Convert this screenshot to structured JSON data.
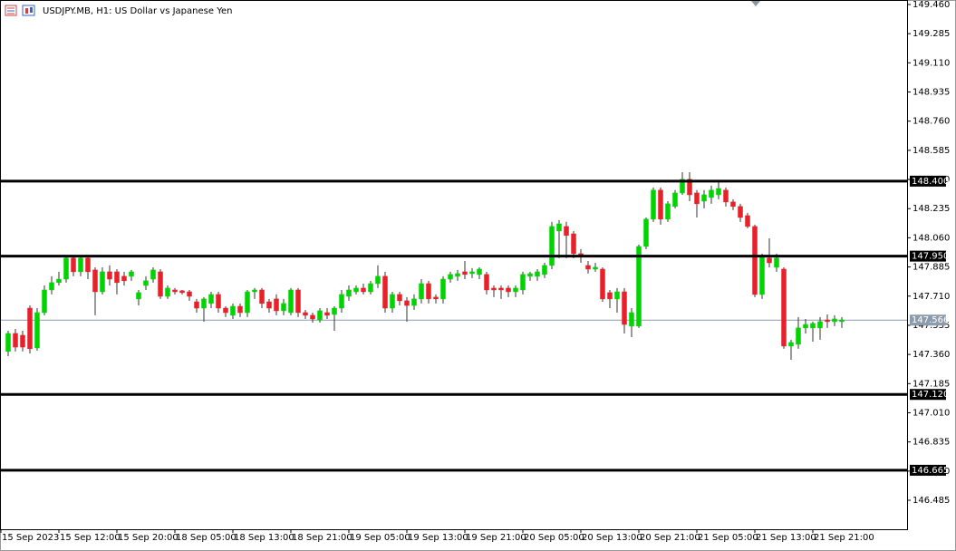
{
  "chart_data": {
    "type": "candlestick",
    "title": "USDJPY.MB, H1:  US Dollar vs Japanese Yen",
    "ylim": [
      146.311,
      149.487
    ],
    "yticks": [
      {
        "value": 149.46,
        "label": "149.460"
      },
      149.285,
      {
        "value": 149.11,
        "label": "149.110"
      },
      148.935,
      {
        "value": 148.76,
        "label": "148.760"
      },
      148.585,
      {
        "value": 148.41,
        "label": "148.410"
      },
      148.235,
      {
        "value": 148.06,
        "label": "148.060"
      },
      147.885,
      {
        "value": 147.71,
        "label": "147.710"
      },
      147.535,
      {
        "value": 147.36,
        "label": "147.360"
      },
      147.185,
      {
        "value": 147.01,
        "label": "147.010"
      },
      146.835,
      {
        "value": 146.66,
        "label": "146.660"
      },
      146.485
    ],
    "xtick_labels": [
      "15 Sep 2023",
      "15 Sep 12:00",
      "15 Sep 20:00",
      "18 Sep 05:00",
      "18 Sep 13:00",
      "18 Sep 21:00",
      "19 Sep 05:00",
      "19 Sep 13:00",
      "19 Sep 21:00",
      "20 Sep 05:00",
      "20 Sep 13:00",
      "20 Sep 21:00",
      "21 Sep 05:00",
      "21 Sep 13:00",
      "21 Sep 21:00"
    ],
    "up_color": "#00d400",
    "down_color": "#e8202a",
    "open": [
      147.378,
      147.486,
      147.475,
      147.638,
      147.399,
      147.611,
      147.747,
      147.791,
      147.812,
      147.938,
      147.856,
      147.938,
      147.867,
      147.736,
      147.856,
      147.856,
      147.829,
      147.829,
      147.693,
      147.774,
      147.812,
      147.856,
      147.709,
      147.747,
      147.742,
      147.736,
      147.676,
      147.638,
      147.666,
      147.72,
      147.638,
      147.595,
      147.649,
      147.611,
      147.736,
      147.747,
      147.676,
      147.693,
      147.622,
      147.611,
      147.747,
      147.611,
      147.595,
      147.567,
      147.611,
      147.6,
      147.638,
      147.709,
      147.736,
      147.758,
      147.736,
      147.785,
      147.829,
      147.638,
      147.72,
      147.682,
      147.654,
      147.693,
      147.785,
      147.704,
      147.693,
      147.812,
      147.829,
      147.856,
      147.845,
      147.84,
      147.84,
      147.758,
      147.758,
      147.758,
      147.736,
      147.747,
      147.829,
      147.829,
      147.84,
      147.894,
      148.101,
      148.128,
      148.084,
      147.965,
      147.894,
      147.872,
      147.872,
      147.731,
      147.693,
      147.736,
      147.53,
      147.53,
      148.008,
      148.172,
      148.346,
      148.172,
      148.248,
      148.329,
      148.411,
      148.329,
      148.28,
      148.302,
      148.318,
      148.346,
      148.275,
      148.248,
      148.193,
      148.128,
      147.72,
      147.938,
      147.883,
      147.872,
      147.41,
      147.421,
      147.519,
      147.519,
      147.519,
      147.567,
      147.557,
      147.557
    ],
    "high": [
      147.502,
      147.513,
      147.502,
      147.654,
      147.638,
      147.774,
      147.829,
      147.856,
      147.948,
      147.948,
      147.948,
      147.948,
      147.883,
      147.883,
      147.894,
      147.872,
      147.856,
      147.867,
      147.747,
      147.829,
      147.883,
      147.872,
      147.774,
      147.758,
      147.747,
      147.747,
      147.693,
      147.704,
      147.736,
      147.736,
      147.649,
      147.666,
      147.666,
      147.747,
      147.758,
      147.758,
      147.693,
      147.72,
      147.693,
      147.758,
      147.758,
      147.627,
      147.611,
      147.638,
      147.638,
      147.649,
      147.747,
      147.774,
      147.774,
      147.785,
      147.802,
      147.894,
      147.856,
      147.736,
      147.736,
      147.704,
      147.72,
      147.812,
      147.802,
      147.72,
      147.829,
      147.856,
      147.867,
      147.921,
      147.878,
      147.883,
      147.856,
      147.774,
      147.774,
      147.774,
      147.774,
      147.856,
      147.856,
      147.872,
      147.91,
      148.155,
      148.166,
      148.155,
      148.101,
      147.992,
      147.921,
      147.91,
      147.883,
      147.747,
      147.758,
      147.758,
      147.638,
      148.019,
      148.182,
      148.362,
      148.362,
      148.28,
      148.346,
      148.454,
      148.454,
      148.346,
      148.346,
      148.373,
      148.4,
      148.362,
      148.291,
      148.264,
      148.21,
      148.139,
      147.965,
      148.057,
      147.965,
      147.883,
      147.448,
      147.584,
      147.573,
      147.557,
      147.584,
      147.6,
      147.595,
      147.584
    ],
    "low": [
      147.35,
      147.378,
      147.378,
      147.366,
      147.383,
      147.595,
      147.72,
      147.774,
      147.791,
      147.829,
      147.829,
      147.812,
      147.595,
      147.72,
      147.774,
      147.72,
      147.774,
      147.802,
      147.654,
      147.747,
      147.791,
      147.693,
      147.693,
      147.72,
      147.72,
      147.682,
      147.611,
      147.557,
      147.638,
      147.611,
      147.584,
      147.573,
      147.584,
      147.584,
      147.693,
      147.638,
      147.611,
      147.595,
      147.595,
      147.595,
      147.584,
      147.573,
      147.551,
      147.551,
      147.573,
      147.502,
      147.611,
      147.682,
      147.72,
      147.72,
      147.72,
      147.758,
      147.611,
      147.611,
      147.654,
      147.557,
      147.627,
      147.666,
      147.666,
      147.666,
      147.666,
      147.791,
      147.802,
      147.812,
      147.818,
      147.812,
      147.72,
      147.704,
      147.693,
      147.704,
      147.704,
      147.72,
      147.802,
      147.802,
      147.818,
      147.872,
      147.938,
      147.938,
      147.938,
      147.91,
      147.845,
      147.856,
      147.676,
      147.638,
      147.611,
      147.486,
      147.464,
      147.519,
      147.992,
      148.155,
      148.139,
      148.155,
      148.237,
      148.318,
      148.28,
      148.182,
      148.237,
      148.264,
      148.291,
      148.248,
      148.226,
      148.155,
      148.117,
      147.704,
      147.693,
      147.883,
      147.856,
      147.394,
      147.328,
      147.394,
      147.486,
      147.437,
      147.448,
      147.519,
      147.53,
      147.519
    ],
    "close": [
      147.486,
      147.404,
      147.404,
      147.394,
      147.611,
      147.747,
      147.791,
      147.812,
      147.938,
      147.856,
      147.938,
      147.856,
      147.736,
      147.856,
      147.812,
      147.791,
      147.802,
      147.856,
      147.731,
      147.802,
      147.867,
      147.709,
      147.758,
      147.736,
      147.731,
      147.709,
      147.638,
      147.693,
      147.72,
      147.638,
      147.611,
      147.649,
      147.611,
      147.736,
      147.747,
      147.666,
      147.638,
      147.622,
      147.666,
      147.747,
      147.611,
      147.595,
      147.573,
      147.622,
      147.595,
      147.638,
      147.72,
      147.747,
      147.758,
      147.736,
      147.785,
      147.829,
      147.638,
      147.72,
      147.682,
      147.654,
      147.693,
      147.785,
      147.693,
      147.693,
      147.812,
      147.84,
      147.845,
      147.84,
      147.856,
      147.872,
      147.747,
      147.747,
      147.747,
      147.736,
      147.758,
      147.84,
      147.845,
      147.856,
      147.894,
      148.128,
      148.144,
      148.074,
      147.965,
      147.948,
      147.872,
      147.883,
      147.693,
      147.693,
      147.736,
      147.54,
      147.611,
      148.008,
      148.172,
      148.346,
      148.172,
      148.264,
      148.329,
      148.411,
      148.318,
      148.264,
      148.318,
      148.346,
      148.356,
      148.275,
      148.248,
      148.182,
      148.128,
      147.72,
      147.948,
      147.91,
      147.938,
      147.41,
      147.432,
      147.519,
      147.54,
      147.546,
      147.557,
      147.557,
      147.573,
      147.567
    ],
    "levels": [
      148.4,
      147.95,
      147.12,
      146.665
    ],
    "level_labels": [
      "148.400",
      "147.950",
      "147.120",
      "146.665"
    ],
    "last_price": 147.566
  }
}
